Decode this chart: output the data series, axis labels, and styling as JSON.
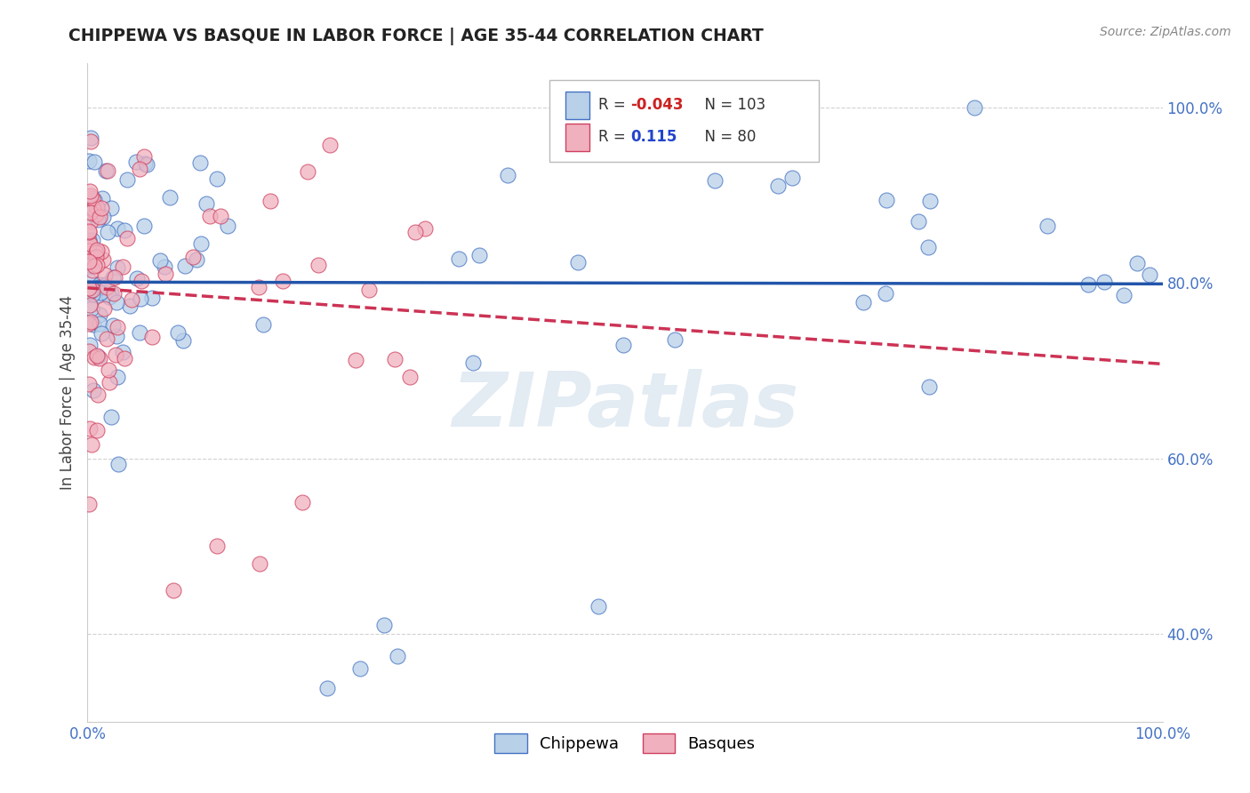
{
  "title": "CHIPPEWA VS BASQUE IN LABOR FORCE | AGE 35-44 CORRELATION CHART",
  "ylabel": "In Labor Force | Age 35-44",
  "source_text": "Source: ZipAtlas.com",
  "xlim": [
    0.0,
    1.0
  ],
  "ylim": [
    0.3,
    1.05
  ],
  "ytick_positions": [
    0.4,
    0.6,
    0.8,
    1.0
  ],
  "ytick_labels": [
    "40.0%",
    "60.0%",
    "80.0%",
    "100.0%"
  ],
  "chippewa_fill": "#b8d0e8",
  "basque_fill": "#f0b0be",
  "chippewa_edge": "#4472c4",
  "basque_edge": "#d04060",
  "chippewa_line_color": "#2255aa",
  "basque_line_color": "#cc3355",
  "legend_R_chippewa": "-0.043",
  "legend_N_chippewa": "103",
  "legend_R_basque": "0.115",
  "legend_N_basque": "80",
  "watermark_text": "ZIPatlas",
  "background_color": "#ffffff",
  "grid_color": "#cccccc"
}
